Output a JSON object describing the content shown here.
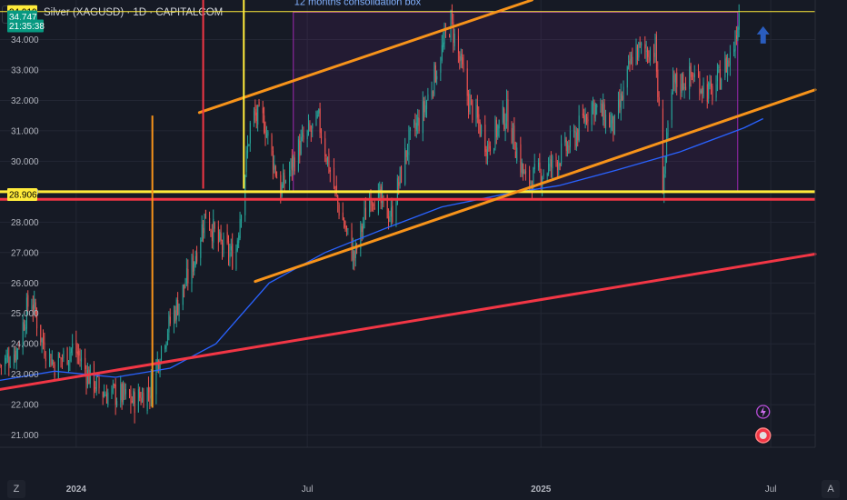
{
  "header": {
    "currency": "USD",
    "symbol_title": "Silver (XAGUSD) · 1D · CAPITALCOM"
  },
  "footer": {
    "left_button": "Z",
    "right_button": "A"
  },
  "colors": {
    "bg": "#161a25",
    "up": "#26a69a",
    "down": "#ef5350",
    "ma": "#2962ff",
    "orange": "#f7931a",
    "red": "#f23645",
    "yellow": "#ffeb3b",
    "violet": "#9c27b0",
    "box_label": "#82b1ff"
  },
  "chart_data": {
    "type": "candlestick",
    "title": "Silver (XAGUSD) · 1D · CAPITALCOM",
    "x_ticks": [
      "2024",
      "Jul",
      "2025",
      "Jul"
    ],
    "y_ticks": [
      "21.000",
      "22.000",
      "23.000",
      "24.000",
      "25.000",
      "26.000",
      "27.000",
      "28.000",
      "29.000",
      "30.000",
      "31.000",
      "32.000",
      "33.000",
      "34.000"
    ],
    "ylim": [
      20.6,
      35.3
    ],
    "xlim": [
      "2023-11-02",
      "2025-08-05"
    ],
    "price_labels": [
      {
        "text": "34.919",
        "kind": "yellow",
        "value": 34.919
      },
      {
        "text": "34.747",
        "kind": "last",
        "value": 34.747
      },
      {
        "text": "21:35:38",
        "kind": "countdown",
        "value": 34.45
      },
      {
        "text": "28.906",
        "kind": "yellow",
        "value": 28.906
      }
    ],
    "annotations": [
      {
        "type": "box",
        "label": "12 months consolidation box",
        "x": [
          "2024-06-20",
          "2025-06-05"
        ],
        "y": [
          29.0,
          34.9
        ]
      },
      {
        "type": "hline",
        "color": "yellow",
        "y": 29.0
      },
      {
        "type": "hline",
        "color": "red",
        "y": 28.75
      },
      {
        "type": "hline",
        "color": "yellow",
        "y": 34.919
      },
      {
        "type": "trend",
        "color": "orange",
        "x": [
          "2024-04-07",
          "2024-12-25"
        ],
        "y": [
          31.6,
          35.3
        ]
      },
      {
        "type": "trend",
        "color": "orange",
        "x": [
          "2024-05-21",
          "2025-08-05"
        ],
        "y": [
          26.05,
          32.35
        ]
      },
      {
        "type": "trend",
        "color": "red",
        "x": [
          "2023-11-02",
          "2025-08-05"
        ],
        "y": [
          22.5,
          26.95
        ]
      },
      {
        "type": "vline",
        "color": "red",
        "x": "2024-04-10",
        "y": [
          29.1,
          35.3
        ]
      },
      {
        "type": "vline",
        "color": "yellow",
        "x": "2024-05-12",
        "y": [
          29.1,
          35.3
        ]
      },
      {
        "type": "vline",
        "color": "orange",
        "x": "2024-03-01",
        "y": [
          21.9,
          31.5
        ]
      },
      {
        "type": "arrow",
        "color": "blue",
        "direction": "up",
        "x": "2025-06-25",
        "y": 34.2
      }
    ],
    "moving_average": [
      [
        "2023-11-02",
        22.8
      ],
      [
        "2023-12-15",
        23.1
      ],
      [
        "2024-02-01",
        22.9
      ],
      [
        "2024-03-15",
        23.2
      ],
      [
        "2024-04-20",
        24.0
      ],
      [
        "2024-06-01",
        26.0
      ],
      [
        "2024-07-15",
        27.0
      ],
      [
        "2024-09-01",
        27.8
      ],
      [
        "2024-10-15",
        28.5
      ],
      [
        "2024-12-01",
        28.9
      ],
      [
        "2025-01-15",
        29.2
      ],
      [
        "2025-03-01",
        29.7
      ],
      [
        "2025-04-20",
        30.3
      ],
      [
        "2025-06-10",
        31.1
      ],
      [
        "2025-06-25",
        31.4
      ]
    ],
    "price_path": [
      [
        "2023-11-02",
        23.3
      ],
      [
        "2023-11-15",
        23.8
      ],
      [
        "2023-11-26",
        25.6
      ],
      [
        "2023-12-05",
        24.1
      ],
      [
        "2023-12-15",
        23.3
      ],
      [
        "2023-12-30",
        23.9
      ],
      [
        "2024-01-10",
        23.0
      ],
      [
        "2024-01-22",
        22.4
      ],
      [
        "2024-02-05",
        22.3
      ],
      [
        "2024-02-15",
        22.1
      ],
      [
        "2024-02-28",
        22.5
      ],
      [
        "2024-03-10",
        24.2
      ],
      [
        "2024-03-20",
        25.2
      ],
      [
        "2024-04-01",
        26.5
      ],
      [
        "2024-04-12",
        28.3
      ],
      [
        "2024-04-22",
        27.3
      ],
      [
        "2024-05-05",
        26.8
      ],
      [
        "2024-05-18",
        31.5
      ],
      [
        "2024-05-28",
        31.3
      ],
      [
        "2024-06-10",
        29.0
      ],
      [
        "2024-06-25",
        30.5
      ],
      [
        "2024-07-10",
        31.3
      ],
      [
        "2024-07-25",
        28.6
      ],
      [
        "2024-08-07",
        26.8
      ],
      [
        "2024-08-20",
        29.0
      ],
      [
        "2024-09-05",
        28.2
      ],
      [
        "2024-09-18",
        30.5
      ],
      [
        "2024-10-01",
        31.7
      ],
      [
        "2024-10-22",
        34.6
      ],
      [
        "2024-11-05",
        32.0
      ],
      [
        "2024-11-20",
        30.5
      ],
      [
        "2024-12-05",
        31.6
      ],
      [
        "2024-12-20",
        29.3
      ],
      [
        "2025-01-08",
        29.8
      ],
      [
        "2025-01-25",
        30.6
      ],
      [
        "2025-02-10",
        31.9
      ],
      [
        "2025-02-28",
        31.1
      ],
      [
        "2025-03-15",
        33.6
      ],
      [
        "2025-04-01",
        33.7
      ],
      [
        "2025-04-07",
        29.3
      ],
      [
        "2025-04-15",
        32.5
      ],
      [
        "2025-05-01",
        32.8
      ],
      [
        "2025-05-15",
        32.2
      ],
      [
        "2025-06-01",
        33.6
      ],
      [
        "2025-06-06",
        34.9
      ],
      [
        "2025-06-08",
        34.75
      ]
    ]
  }
}
